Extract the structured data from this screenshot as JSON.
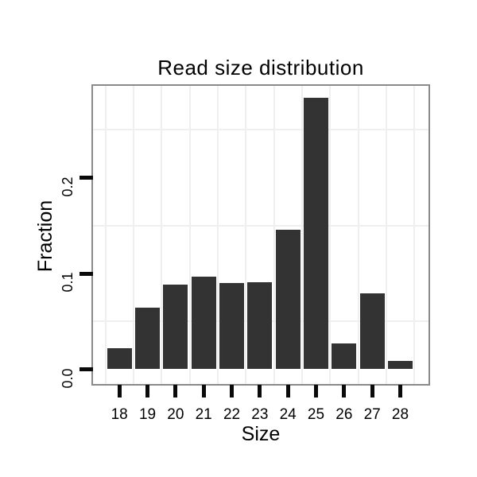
{
  "chart_data": {
    "type": "bar",
    "title": "Read size distribution",
    "xlabel": "Size",
    "ylabel": "Fraction",
    "categories": [
      "18",
      "19",
      "20",
      "21",
      "22",
      "23",
      "24",
      "25",
      "26",
      "27",
      "28"
    ],
    "values": [
      0.022,
      0.064,
      0.088,
      0.097,
      0.09,
      0.091,
      0.146,
      0.283,
      0.027,
      0.079,
      0.009
    ],
    "y_ticks": [
      "0.0",
      "0.1",
      "0.2"
    ],
    "y_tick_values": [
      0.0,
      0.1,
      0.2
    ],
    "ylim": [
      0,
      0.296
    ],
    "minor_gridlines_y": [
      0.05,
      0.15,
      0.25
    ],
    "grid": "minor gridlines on, light gray",
    "legend": "none",
    "colors": {
      "bar": "#333333",
      "grid": "#efefef",
      "panel_border": "#8a8a8a",
      "tick": "#0a0a0a",
      "text": "#000000",
      "background": "#ffffff"
    }
  }
}
